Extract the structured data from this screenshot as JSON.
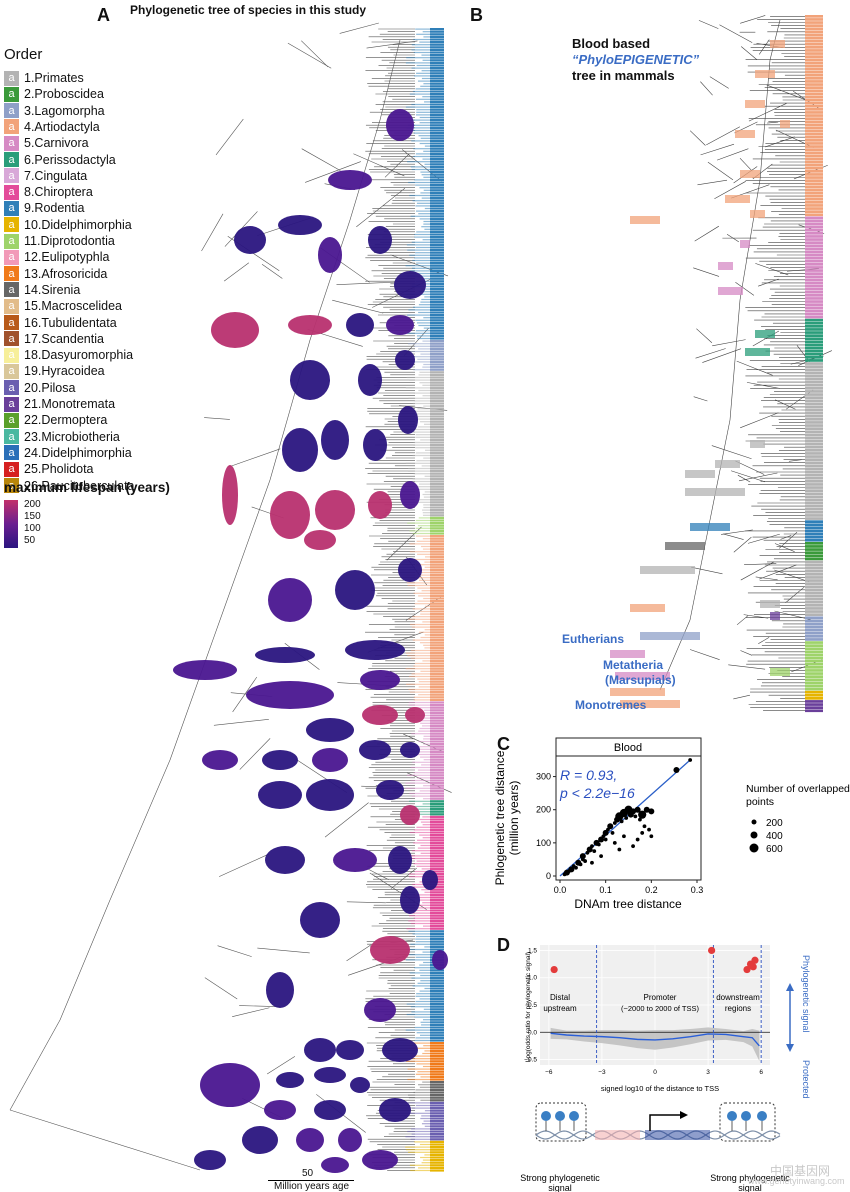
{
  "panel_a": {
    "letter": "A",
    "title": "Phylogenetic tree of species in this study",
    "order_legend_title": "Order",
    "order_glyph": "a",
    "orders": [
      {
        "label": "1.Primates",
        "color": "#b3b3b3"
      },
      {
        "label": "2.Proboscidea",
        "color": "#3a9a3a"
      },
      {
        "label": "3.Lagomorpha",
        "color": "#8fa0c8"
      },
      {
        "label": "4.Artiodactyla",
        "color": "#f2a37a"
      },
      {
        "label": "5.Carnivora",
        "color": "#d68ac4"
      },
      {
        "label": "6.Perissodactyla",
        "color": "#2a9d7a"
      },
      {
        "label": "7.Cingulata",
        "color": "#d8a8d8"
      },
      {
        "label": "8.Chiroptera",
        "color": "#e34b9a"
      },
      {
        "label": "9.Rodentia",
        "color": "#2f7fb8"
      },
      {
        "label": "10.Didelphimorphia",
        "color": "#e6b400"
      },
      {
        "label": "11.Diprotodontia",
        "color": "#9ed36a"
      },
      {
        "label": "12.Eulipotyphla",
        "color": "#f29ab8"
      },
      {
        "label": "13.Afrosoricida",
        "color": "#f07a1a"
      },
      {
        "label": "14.Sirenia",
        "color": "#666666"
      },
      {
        "label": "15.Macroscelidea",
        "color": "#e2bc8a"
      },
      {
        "label": "16.Tubulidentata",
        "color": "#b85a1a"
      },
      {
        "label": "17.Scandentia",
        "color": "#a0522d"
      },
      {
        "label": "18.Dasyuromorphia",
        "color": "#f7ef9a"
      },
      {
        "label": "19.Hyracoidea",
        "color": "#d9c79a"
      },
      {
        "label": "20.Pilosa",
        "color": "#6a5fb0"
      },
      {
        "label": "21.Monotremata",
        "color": "#6a3f9a"
      },
      {
        "label": "22.Dermoptera",
        "color": "#5aa02a"
      },
      {
        "label": "23.Microbiotheria",
        "color": "#4ab8a0"
      },
      {
        "label": "24.Didelphimorphia",
        "color": "#2a6fb8"
      },
      {
        "label": "25.Pholidota",
        "color": "#d62020"
      },
      {
        "label": "26.Paucituberculata",
        "color": "#b8860b"
      }
    ],
    "lifespan_legend": {
      "title": "maximum lifespan (years)",
      "ticks": [
        "200",
        "150",
        "100",
        "50"
      ],
      "color_high": "#c2306a",
      "color_low": "#2a1580"
    },
    "scale_bar": {
      "value": "50",
      "label": "Million years age"
    }
  },
  "panel_b": {
    "letter": "B",
    "title_line1": "Blood based",
    "title_line2": "“PhyloEPIGENETIC”",
    "title_line3": "tree in mammals",
    "clade_labels": [
      "Eutherians",
      "Metatheria",
      "(Marsupials)",
      "Monotremes"
    ],
    "label_color": "#3a6cc4"
  },
  "panel_c": {
    "letter": "C",
    "facet_label": "Blood",
    "annotation_r": "R = 0.93,",
    "annotation_p": "p < 2.2e−16",
    "size_legend_title_1": "Number of overlapped",
    "size_legend_title_2": "points",
    "size_legend": [
      {
        "label": "200",
        "r": 2.5
      },
      {
        "label": "400",
        "r": 3.5
      },
      {
        "label": "600",
        "r": 4.5
      }
    ]
  },
  "panel_d": {
    "letter": "D",
    "ylabel": "Log(odds ratio for phylogenetic signal)",
    "xlabel": "signed log10 of the distance to TSS",
    "region_distal": [
      "Distal",
      "upstream"
    ],
    "region_promoter": [
      "Promoter",
      "(−2000 to 2000 of TSS)"
    ],
    "region_downstream": [
      "downstream",
      "regions"
    ],
    "side_top": "Phylogenetic signal",
    "side_bottom": "Protected",
    "strong_left": [
      "Strong phylogenetic",
      "signal"
    ],
    "strong_right": [
      "Strong phylogenetic",
      "signal"
    ]
  },
  "watermark": {
    "line1": "中国基因网",
    "line2": "www.genetyinwang.com"
  },
  "chart_data": [
    {
      "type": "scatter",
      "title": "Blood",
      "xlabel": "DNAm tree distance",
      "ylabel": "Phlogenetic tree distance (million years)",
      "xlim": [
        0,
        0.3
      ],
      "ylim": [
        0,
        350
      ],
      "xticks": [
        0.0,
        0.1,
        0.2,
        0.3
      ],
      "xtick_labels": [
        "0.0",
        "0.1",
        "0.2",
        "0.3"
      ],
      "yticks": [
        0,
        100,
        200,
        300
      ],
      "ytick_labels": [
        "0",
        "100",
        "200",
        "300"
      ],
      "fit_line": {
        "x": [
          0.0,
          0.285
        ],
        "y": [
          0,
          350
        ]
      },
      "points": [
        {
          "x": 0.01,
          "y": 5,
          "s": 1
        },
        {
          "x": 0.015,
          "y": 10,
          "s": 2
        },
        {
          "x": 0.02,
          "y": 15,
          "s": 1
        },
        {
          "x": 0.025,
          "y": 20,
          "s": 2
        },
        {
          "x": 0.03,
          "y": 30,
          "s": 1
        },
        {
          "x": 0.035,
          "y": 25,
          "s": 1
        },
        {
          "x": 0.04,
          "y": 40,
          "s": 2
        },
        {
          "x": 0.045,
          "y": 35,
          "s": 1
        },
        {
          "x": 0.05,
          "y": 50,
          "s": 1
        },
        {
          "x": 0.05,
          "y": 60,
          "s": 2
        },
        {
          "x": 0.055,
          "y": 45,
          "s": 1
        },
        {
          "x": 0.06,
          "y": 70,
          "s": 1
        },
        {
          "x": 0.065,
          "y": 80,
          "s": 2
        },
        {
          "x": 0.07,
          "y": 90,
          "s": 1
        },
        {
          "x": 0.075,
          "y": 75,
          "s": 1
        },
        {
          "x": 0.08,
          "y": 100,
          "s": 2
        },
        {
          "x": 0.085,
          "y": 95,
          "s": 1
        },
        {
          "x": 0.09,
          "y": 110,
          "s": 2
        },
        {
          "x": 0.095,
          "y": 120,
          "s": 1
        },
        {
          "x": 0.1,
          "y": 130,
          "s": 2
        },
        {
          "x": 0.1,
          "y": 110,
          "s": 1
        },
        {
          "x": 0.105,
          "y": 140,
          "s": 1
        },
        {
          "x": 0.11,
          "y": 150,
          "s": 2
        },
        {
          "x": 0.115,
          "y": 130,
          "s": 1
        },
        {
          "x": 0.12,
          "y": 160,
          "s": 1
        },
        {
          "x": 0.125,
          "y": 170,
          "s": 2
        },
        {
          "x": 0.13,
          "y": 180,
          "s": 3
        },
        {
          "x": 0.135,
          "y": 165,
          "s": 1
        },
        {
          "x": 0.14,
          "y": 190,
          "s": 3
        },
        {
          "x": 0.145,
          "y": 175,
          "s": 1
        },
        {
          "x": 0.15,
          "y": 200,
          "s": 3
        },
        {
          "x": 0.155,
          "y": 185,
          "s": 2
        },
        {
          "x": 0.16,
          "y": 195,
          "s": 2
        },
        {
          "x": 0.165,
          "y": 180,
          "s": 1
        },
        {
          "x": 0.17,
          "y": 200,
          "s": 2
        },
        {
          "x": 0.175,
          "y": 170,
          "s": 1
        },
        {
          "x": 0.18,
          "y": 185,
          "s": 3
        },
        {
          "x": 0.185,
          "y": 150,
          "s": 1
        },
        {
          "x": 0.19,
          "y": 200,
          "s": 2
        },
        {
          "x": 0.195,
          "y": 140,
          "s": 1
        },
        {
          "x": 0.2,
          "y": 120,
          "s": 1
        },
        {
          "x": 0.2,
          "y": 195,
          "s": 2
        },
        {
          "x": 0.12,
          "y": 100,
          "s": 1
        },
        {
          "x": 0.13,
          "y": 80,
          "s": 1
        },
        {
          "x": 0.14,
          "y": 120,
          "s": 1
        },
        {
          "x": 0.16,
          "y": 90,
          "s": 1
        },
        {
          "x": 0.17,
          "y": 110,
          "s": 1
        },
        {
          "x": 0.18,
          "y": 130,
          "s": 1
        },
        {
          "x": 0.09,
          "y": 60,
          "s": 1
        },
        {
          "x": 0.07,
          "y": 40,
          "s": 1
        },
        {
          "x": 0.255,
          "y": 320,
          "s": 2
        },
        {
          "x": 0.285,
          "y": 350,
          "s": 1
        }
      ]
    },
    {
      "type": "line",
      "title": "",
      "xlabel": "signed log10 of the distance to TSS",
      "ylabel": "Log(odds ratio for phylogenetic signal)",
      "xlim": [
        -6.5,
        6.5
      ],
      "ylim": [
        -0.6,
        1.6
      ],
      "xticks": [
        -6,
        -3,
        0,
        3,
        6
      ],
      "xtick_labels": [
        "−6",
        "−3",
        "0",
        "3",
        "6"
      ],
      "yticks": [
        -0.5,
        0.0,
        0.5,
        1.0,
        1.5
      ],
      "ytick_labels": [
        "−0.5",
        "0.0",
        "0.5",
        "1.0",
        "1.5"
      ],
      "vlines": [
        -3.3,
        3.3,
        6.0
      ],
      "smooth_x": [
        -5.9,
        -5,
        -4,
        -3,
        -2,
        -1,
        0,
        1,
        2,
        3,
        4,
        5,
        5.5,
        5.9
      ],
      "smooth_y": [
        -0.02,
        -0.05,
        -0.07,
        -0.08,
        -0.1,
        -0.13,
        -0.14,
        -0.12,
        -0.08,
        -0.03,
        -0.04,
        -0.08,
        -0.1,
        -0.25
      ],
      "band_half_width": [
        0.1,
        0.08,
        0.1,
        0.12,
        0.14,
        0.16,
        0.18,
        0.16,
        0.14,
        0.12,
        0.1,
        0.1,
        0.16,
        0.28
      ],
      "red_points": [
        {
          "x": -5.7,
          "y": 1.15
        },
        {
          "x": 3.2,
          "y": 1.5
        },
        {
          "x": 5.2,
          "y": 1.15
        },
        {
          "x": 5.4,
          "y": 1.25
        },
        {
          "x": 5.55,
          "y": 1.2
        },
        {
          "x": 5.65,
          "y": 1.32
        }
      ]
    }
  ]
}
